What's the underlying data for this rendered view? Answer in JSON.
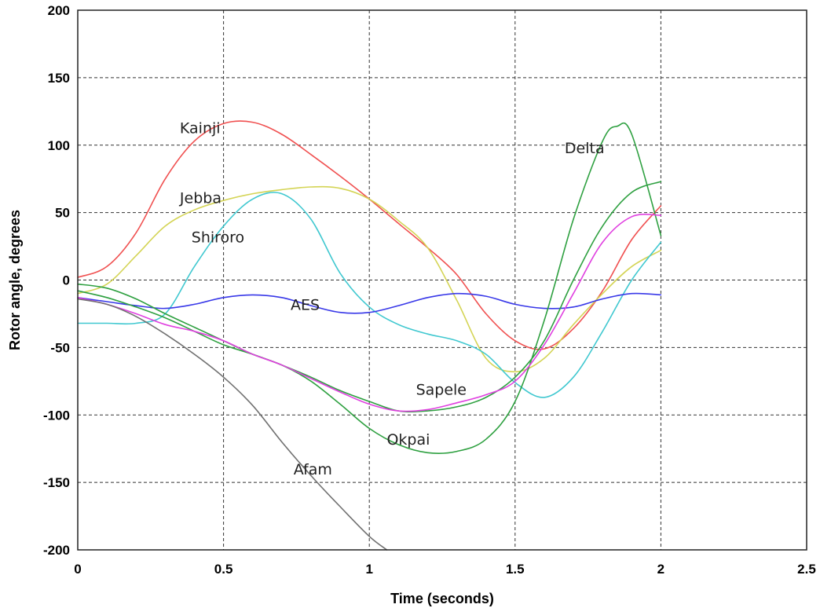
{
  "chart_data": {
    "type": "line",
    "title": "",
    "xlabel": "Time (seconds)",
    "ylabel": "Rotor angle, degrees",
    "xlim": [
      0,
      2.5
    ],
    "ylim": [
      -200,
      200
    ],
    "xticks": [
      0,
      0.5,
      1,
      1.5,
      2,
      2.5
    ],
    "yticks": [
      200,
      150,
      100,
      50,
      0,
      -50,
      -100,
      -150,
      -200
    ],
    "xtick_labels": [
      "0",
      "0.5",
      "1",
      "1.5",
      "2",
      "2.5"
    ],
    "ytick_labels": [
      "200",
      "150",
      "100",
      "50",
      "0",
      "-50",
      "-100",
      "-150",
      "-200"
    ],
    "grid": true,
    "series": [
      {
        "name": "Kainji",
        "color": "#f05050",
        "x": [
          0,
          0.1,
          0.2,
          0.3,
          0.4,
          0.5,
          0.6,
          0.7,
          0.8,
          0.9,
          1.0,
          1.1,
          1.2,
          1.3,
          1.4,
          1.5,
          1.6,
          1.7,
          1.8,
          1.9,
          2.0
        ],
        "y": [
          2,
          10,
          35,
          75,
          103,
          116,
          117,
          108,
          93,
          77,
          60,
          42,
          24,
          4,
          -25,
          -45,
          -51,
          -36,
          -8,
          30,
          55
        ]
      },
      {
        "name": "Jebba",
        "color": "#d4d455",
        "x": [
          0,
          0.1,
          0.2,
          0.3,
          0.4,
          0.5,
          0.6,
          0.7,
          0.8,
          0.9,
          1.0,
          1.1,
          1.2,
          1.3,
          1.4,
          1.5,
          1.6,
          1.7,
          1.8,
          1.9,
          2.0
        ],
        "y": [
          -10,
          -3,
          18,
          40,
          52,
          59,
          64,
          67,
          69,
          68,
          60,
          44,
          24,
          -15,
          -58,
          -68,
          -58,
          -33,
          -10,
          10,
          22
        ]
      },
      {
        "name": "Shiroro",
        "color": "#40c8d0",
        "x": [
          0,
          0.1,
          0.2,
          0.3,
          0.4,
          0.5,
          0.6,
          0.7,
          0.8,
          0.9,
          1.0,
          1.1,
          1.2,
          1.3,
          1.4,
          1.5,
          1.6,
          1.7,
          1.8,
          1.9,
          2.0
        ],
        "y": [
          -32,
          -32,
          -32,
          -25,
          10,
          40,
          60,
          64,
          45,
          5,
          -20,
          -33,
          -40,
          -45,
          -55,
          -76,
          -87,
          -72,
          -38,
          0,
          28
        ]
      },
      {
        "name": "AES",
        "color": "#3838e8",
        "x": [
          0,
          0.1,
          0.2,
          0.3,
          0.4,
          0.5,
          0.6,
          0.7,
          0.8,
          0.9,
          1.0,
          1.1,
          1.2,
          1.3,
          1.4,
          1.5,
          1.6,
          1.7,
          1.8,
          1.9,
          2.0
        ],
        "y": [
          -13,
          -16,
          -19,
          -21,
          -18,
          -13,
          -11,
          -13,
          -19,
          -24,
          -24,
          -19,
          -13,
          -10,
          -12,
          -18,
          -21,
          -20,
          -14,
          -10,
          -11
        ]
      },
      {
        "name": "Delta",
        "color": "#2ea040",
        "x": [
          0,
          0.1,
          0.2,
          0.3,
          0.4,
          0.5,
          0.6,
          0.7,
          0.8,
          0.9,
          1.0,
          1.1,
          1.2,
          1.3,
          1.4,
          1.5,
          1.6,
          1.7,
          1.8,
          1.85,
          1.9,
          2.0
        ],
        "y": [
          -3,
          -6,
          -14,
          -25,
          -35,
          -45,
          -55,
          -63,
          -75,
          -92,
          -110,
          -122,
          -128,
          -127,
          -118,
          -90,
          -30,
          45,
          103,
          114,
          108,
          33
        ]
      },
      {
        "name": "Okpai",
        "color": "#2ea040",
        "x": [
          0,
          0.1,
          0.2,
          0.3,
          0.4,
          0.5,
          0.6,
          0.7,
          0.8,
          0.9,
          1.0,
          1.1,
          1.2,
          1.3,
          1.4,
          1.5,
          1.6,
          1.7,
          1.8,
          1.9,
          2.0
        ],
        "y": [
          -8,
          -13,
          -20,
          -28,
          -38,
          -48,
          -55,
          -63,
          -72,
          -82,
          -90,
          -97,
          -97,
          -94,
          -87,
          -72,
          -45,
          0,
          40,
          65,
          73
        ]
      },
      {
        "name": "Sapele",
        "color": "#e040e0",
        "x": [
          0,
          0.1,
          0.2,
          0.3,
          0.4,
          0.5,
          0.6,
          0.7,
          0.8,
          0.9,
          1.0,
          1.1,
          1.2,
          1.3,
          1.4,
          1.5,
          1.6,
          1.7,
          1.8,
          1.9,
          2.0
        ],
        "y": [
          -13,
          -18,
          -25,
          -33,
          -38,
          -45,
          -55,
          -63,
          -73,
          -83,
          -92,
          -97,
          -96,
          -91,
          -85,
          -75,
          -48,
          -10,
          28,
          47,
          48
        ]
      },
      {
        "name": "Afam",
        "color": "#707070",
        "x": [
          0,
          0.1,
          0.2,
          0.3,
          0.4,
          0.5,
          0.6,
          0.7,
          0.8,
          0.9,
          1.0,
          1.06
        ],
        "y": [
          -14,
          -18,
          -27,
          -40,
          -55,
          -72,
          -93,
          -120,
          -145,
          -168,
          -190,
          -200
        ]
      }
    ],
    "annotations": [
      {
        "text": "Kainji",
        "x": 0.35,
        "y": 109
      },
      {
        "text": "Jebba",
        "x": 0.35,
        "y": 57
      },
      {
        "text": "Shiroro",
        "x": 0.39,
        "y": 28
      },
      {
        "text": "AES",
        "x": 0.73,
        "y": -22
      },
      {
        "text": "Delta",
        "x": 1.67,
        "y": 94
      },
      {
        "text": "Sapele",
        "x": 1.16,
        "y": -85
      },
      {
        "text": "Okpai",
        "x": 1.06,
        "y": -122
      },
      {
        "text": "Afam",
        "x": 0.74,
        "y": -144
      }
    ]
  }
}
